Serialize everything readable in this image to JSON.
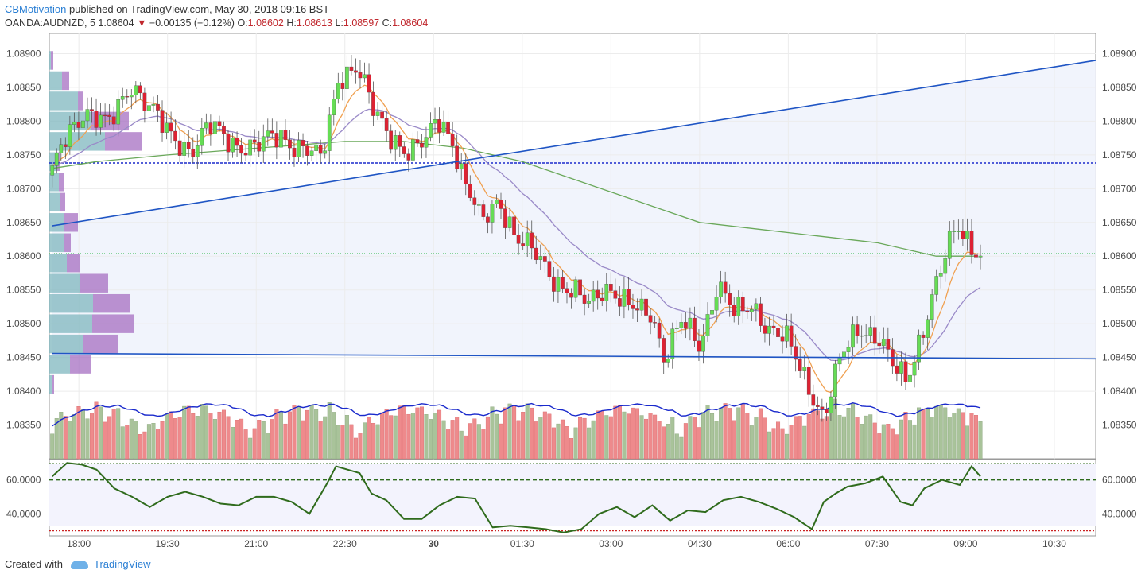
{
  "header": {
    "author": "CBMotivation",
    "published": "published on TradingView.com, May 30, 2018 09:16 BST",
    "symbol": "OANDA:AUDNZD, 5",
    "last": "1.08604",
    "change": "−0.00135 (−0.12%)",
    "o_label": "O:",
    "o": "1.08602",
    "h_label": "H:",
    "h": "1.08613",
    "l_label": "L:",
    "l": "1.08597",
    "c_label": "C:",
    "c": "1.08604"
  },
  "footer": {
    "created_with": "Created with",
    "brand": "TradingView"
  },
  "colors": {
    "up": "#66dd55",
    "down": "#dd2233",
    "vol_up": "#a9c39a",
    "vol_down": "#ee8a8c",
    "ema_fast": "#f0a050",
    "ema_slow": "#9a8ac8",
    "ma_long": "#6aa85a",
    "trendline": "#1f55c4",
    "volume_ma": "#1a2acc",
    "rsi": "#2f6b1c",
    "rsi_bg": "#f3f3fd"
  },
  "chart_data": [
    {
      "type": "candlestick",
      "title": "OANDA:AUDNZD, 5",
      "ylim": [
        1.083,
        1.0893
      ],
      "y_ticks": [
        "1.08900",
        "1.08850",
        "1.08800",
        "1.08750",
        "1.08700",
        "1.08650",
        "1.08600",
        "1.08550",
        "1.08500",
        "1.08450",
        "1.08400",
        "1.08350"
      ],
      "x_ticks": [
        "18:00",
        "19:30",
        "21:00",
        "22:30",
        "30",
        "01:30",
        "03:00",
        "04:30",
        "06:00",
        "07:30",
        "09:00",
        "10:30"
      ],
      "x_tick_hours": [
        18.0,
        19.5,
        21.0,
        22.5,
        24.0,
        25.5,
        27.0,
        28.5,
        30.0,
        31.5,
        33.0,
        34.5
      ],
      "x_range_hours": [
        17.5,
        35.2
      ],
      "close_path": [
        [
          17.55,
          1.0872
        ],
        [
          17.8,
          1.0878
        ],
        [
          18.1,
          1.0882
        ],
        [
          18.5,
          1.0879
        ],
        [
          18.9,
          1.0886
        ],
        [
          19.2,
          1.0882
        ],
        [
          19.5,
          1.0878
        ],
        [
          19.9,
          1.0876
        ],
        [
          20.2,
          1.0879
        ],
        [
          20.6,
          1.0877
        ],
        [
          21.0,
          1.0876
        ],
        [
          21.4,
          1.0878
        ],
        [
          21.8,
          1.0876
        ],
        [
          22.1,
          1.0874
        ],
        [
          22.4,
          1.0887
        ],
        [
          22.7,
          1.0888
        ],
        [
          23.0,
          1.0881
        ],
        [
          23.3,
          1.0878
        ],
        [
          23.6,
          1.0875
        ],
        [
          23.9,
          1.0877
        ],
        [
          24.05,
          1.0881
        ],
        [
          24.3,
          1.0878
        ],
        [
          24.5,
          1.0871
        ],
        [
          24.8,
          1.0865
        ],
        [
          25.1,
          1.0869
        ],
        [
          25.4,
          1.0862
        ],
        [
          25.8,
          1.086
        ],
        [
          26.2,
          1.0855
        ],
        [
          26.6,
          1.0853
        ],
        [
          26.9,
          1.0856
        ],
        [
          27.3,
          1.0852
        ],
        [
          27.7,
          1.0852
        ],
        [
          27.9,
          1.0845
        ],
        [
          28.2,
          1.085
        ],
        [
          28.5,
          1.0847
        ],
        [
          28.8,
          1.0856
        ],
        [
          29.1,
          1.0851
        ],
        [
          29.4,
          1.0853
        ],
        [
          29.7,
          1.0849
        ],
        [
          30.0,
          1.0847
        ],
        [
          30.3,
          1.0842
        ],
        [
          30.6,
          1.0836
        ],
        [
          30.9,
          1.0845
        ],
        [
          31.2,
          1.085
        ],
        [
          31.5,
          1.0848
        ],
        [
          31.8,
          1.0843
        ],
        [
          32.0,
          1.0842
        ],
        [
          32.3,
          1.085
        ],
        [
          32.6,
          1.0858
        ],
        [
          32.85,
          1.0865
        ],
        [
          33.1,
          1.0862
        ],
        [
          33.25,
          1.086
        ]
      ],
      "ma_long_path": [
        [
          17.55,
          1.0873
        ],
        [
          18.3,
          1.0874
        ],
        [
          19.5,
          1.0875
        ],
        [
          21.0,
          1.0876
        ],
        [
          22.5,
          1.0877
        ],
        [
          23.5,
          1.0877
        ],
        [
          24.5,
          1.0876
        ],
        [
          25.5,
          1.0874
        ],
        [
          26.5,
          1.0871
        ],
        [
          27.5,
          1.0868
        ],
        [
          28.5,
          1.0865
        ],
        [
          29.5,
          1.0864
        ],
        [
          30.5,
          1.0863
        ],
        [
          31.5,
          1.0862
        ],
        [
          32.5,
          1.086
        ],
        [
          33.2,
          1.086
        ]
      ],
      "trendlines": [
        {
          "name": "rising",
          "x": [
            17.55,
            35.2
          ],
          "y": [
            1.08645,
            1.0889
          ]
        },
        {
          "name": "support",
          "x": [
            17.55,
            35.2
          ],
          "y": [
            1.08456,
            1.08448
          ]
        }
      ],
      "resistance_level": 1.08738,
      "last_price_level": 1.08604,
      "volume_profile": [
        {
          "price": 1.0889,
          "up": 2,
          "down": 3
        },
        {
          "price": 1.0886,
          "up": 16,
          "down": 9
        },
        {
          "price": 1.0883,
          "up": 36,
          "down": 6
        },
        {
          "price": 1.088,
          "up": 52,
          "down": 48
        },
        {
          "price": 1.0877,
          "up": 70,
          "down": 46
        },
        {
          "price": 1.0874,
          "up": 10,
          "down": 4
        },
        {
          "price": 1.0871,
          "up": 12,
          "down": 6
        },
        {
          "price": 1.0868,
          "up": 14,
          "down": 6
        },
        {
          "price": 1.0865,
          "up": 18,
          "down": 18
        },
        {
          "price": 1.0862,
          "up": 18,
          "down": 9
        },
        {
          "price": 1.0859,
          "up": 22,
          "down": 16
        },
        {
          "price": 1.0856,
          "up": 38,
          "down": 36
        },
        {
          "price": 1.0853,
          "up": 55,
          "down": 46
        },
        {
          "price": 1.085,
          "up": 54,
          "down": 52
        },
        {
          "price": 1.0847,
          "up": 42,
          "down": 44
        },
        {
          "price": 1.0844,
          "up": 26,
          "down": 26
        },
        {
          "price": 1.0841,
          "up": 4,
          "down": 2
        }
      ]
    },
    {
      "type": "bar",
      "title": "Volume",
      "series": [
        {
          "name": "volume"
        },
        {
          "name": "volume moving average"
        }
      ]
    },
    {
      "type": "line",
      "title": "RSI",
      "ylim": [
        27,
        72
      ],
      "y_ticks": [
        "60.0000",
        "40.0000"
      ],
      "overbought": 60,
      "oversold": 30,
      "x": [
        17.55,
        17.8,
        18.05,
        18.3,
        18.6,
        18.9,
        19.2,
        19.5,
        19.8,
        20.1,
        20.4,
        20.7,
        21.0,
        21.3,
        21.6,
        21.9,
        22.2,
        22.35,
        22.55,
        22.75,
        22.95,
        23.2,
        23.5,
        23.8,
        24.1,
        24.4,
        24.7,
        25.0,
        25.3,
        25.6,
        25.9,
        26.2,
        26.5,
        26.8,
        27.1,
        27.4,
        27.7,
        28.0,
        28.3,
        28.6,
        28.9,
        29.2,
        29.5,
        29.8,
        30.1,
        30.4,
        30.6,
        30.8,
        31.0,
        31.3,
        31.6,
        31.9,
        32.1,
        32.3,
        32.6,
        32.9,
        33.1,
        33.25
      ],
      "values": [
        62,
        70,
        69,
        66,
        55,
        50,
        44,
        50,
        53,
        50,
        46,
        45,
        50,
        50,
        47,
        40,
        58,
        68,
        66,
        64,
        52,
        48,
        37,
        37,
        45,
        50,
        49,
        32,
        33,
        32,
        31,
        29,
        31,
        40,
        44,
        38,
        45,
        36,
        42,
        41,
        48,
        50,
        47,
        43,
        38,
        31,
        47,
        52,
        56,
        58,
        62,
        47,
        45,
        55,
        60,
        57,
        68,
        62
      ]
    }
  ]
}
